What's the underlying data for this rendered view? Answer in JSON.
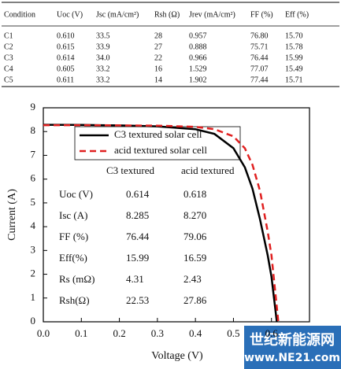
{
  "table": {
    "header": [
      "Condition",
      "Uoc (V)",
      "Jsc (mA/cm²)",
      "Rsh (Ω)",
      "Jrev (mA/cm²)",
      "FF (%)",
      "Eff (%)"
    ],
    "rows": [
      [
        "C1",
        "0.610",
        "33.5",
        "28",
        "0.957",
        "76.80",
        "15.70"
      ],
      [
        "C2",
        "0.615",
        "33.9",
        "27",
        "0.888",
        "75.71",
        "15.78"
      ],
      [
        "C3",
        "0.614",
        "34.0",
        "22",
        "0.966",
        "76.44",
        "15.99"
      ],
      [
        "C4",
        "0.605",
        "33.2",
        "16",
        "1.529",
        "77.07",
        "15.49"
      ],
      [
        "C5",
        "0.611",
        "33.2",
        "14",
        "1.902",
        "77.44",
        "15.71"
      ]
    ]
  },
  "chart_data": {
    "type": "line",
    "x_label": "Voltage (V)",
    "y_label": "Current (A)",
    "x": [
      0,
      0.1,
      0.2,
      0.3,
      0.4,
      0.45,
      0.5,
      0.53,
      0.55,
      0.57,
      0.59,
      0.6,
      0.614,
      0.618
    ],
    "series": [
      {
        "name": "C3 textured solar cell",
        "color": "#000000",
        "dash": false,
        "values": [
          8.285,
          8.28,
          8.26,
          8.22,
          8.1,
          7.9,
          7.3,
          6.5,
          5.6,
          4.3,
          2.8,
          1.9,
          0,
          null
        ]
      },
      {
        "name": "acid textured solar cell",
        "color": "#e02020",
        "dash": true,
        "values": [
          8.27,
          8.27,
          8.26,
          8.25,
          8.2,
          8.1,
          7.8,
          7.3,
          6.6,
          5.5,
          3.8,
          2.8,
          0.62,
          0
        ]
      }
    ],
    "xlim": [
      0,
      0.7
    ],
    "ylim": [
      0,
      9
    ],
    "xticks": [
      {
        "value": 0,
        "label": "0.0"
      },
      0.1,
      0.2,
      0.3,
      0.4,
      0.5,
      0.6
    ],
    "yticks": [
      0,
      1,
      2,
      3,
      4,
      5,
      6,
      7,
      8,
      9
    ],
    "legend": "upper center",
    "annotation_table": {
      "columns": [
        "C3 textured",
        "acid textured"
      ],
      "rows": [
        [
          "Uoc (V)",
          "0.614",
          "0.618"
        ],
        [
          "Isc (A)",
          "8.285",
          "8.270"
        ],
        [
          "FF (%)",
          "76.44",
          "79.06"
        ],
        [
          "Eff(%)",
          "15.99",
          "16.59"
        ],
        [
          "Rs (mΩ)",
          "4.31",
          "2.43"
        ],
        [
          "Rsh(Ω)",
          "22.53",
          "27.86"
        ]
      ]
    }
  },
  "watermark": {
    "title": "世纪新能源网",
    "url": "www.NE21.com"
  }
}
